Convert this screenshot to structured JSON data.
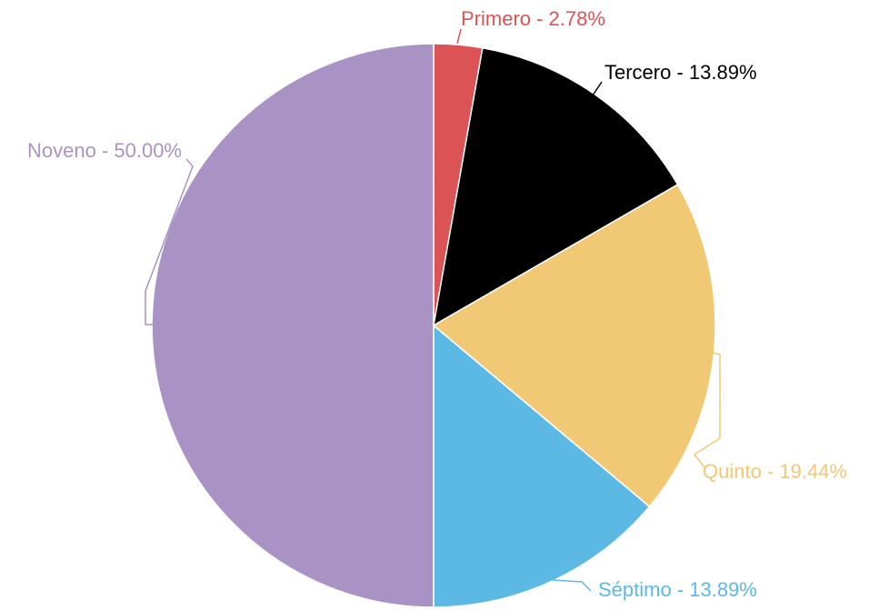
{
  "chart_data": {
    "type": "pie",
    "values": [
      2.78,
      13.89,
      19.44,
      13.89,
      50.0
    ],
    "value_labels": [
      "Primero - 2.78%",
      "Tercero - 13.89%",
      "Quinto - 19.44%",
      "Séptimo - 13.89%",
      "Noveno - 50.00%"
    ],
    "colors": [
      "#dc5356",
      "#000000",
      "#f1c873",
      "#5bb9e3",
      "#a993c4"
    ],
    "label_colors": [
      "#dc5356",
      "#000000",
      "#f1c873",
      "#5bb9e3",
      "#a993c4"
    ]
  }
}
